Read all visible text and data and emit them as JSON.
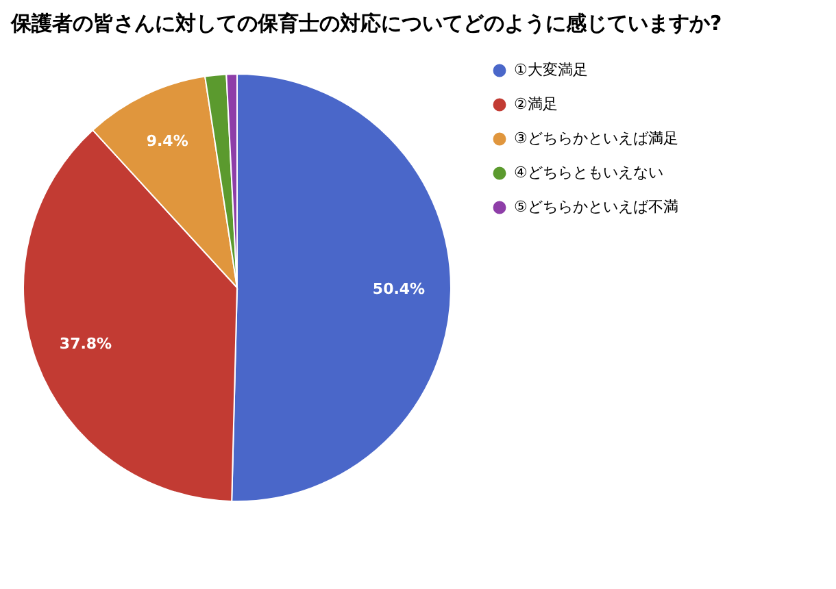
{
  "chart_data": {
    "type": "pie",
    "title": "保護者の皆さんに対しての保育士の対応についてどのように感じていますか?",
    "categories": [
      "①大変満足",
      "②満足",
      "③どちらかといえば満足",
      "④どちらともいえない",
      "⑤どちらかといえば不満"
    ],
    "values": [
      50.4,
      37.8,
      9.4,
      1.6,
      0.8
    ],
    "colors": [
      "#4a67c9",
      "#c23b33",
      "#e0963d",
      "#5b9a2e",
      "#8e3ea8"
    ],
    "value_labels": [
      "50.4%",
      "37.8%",
      "9.4%",
      null,
      null
    ],
    "legend": "right"
  }
}
